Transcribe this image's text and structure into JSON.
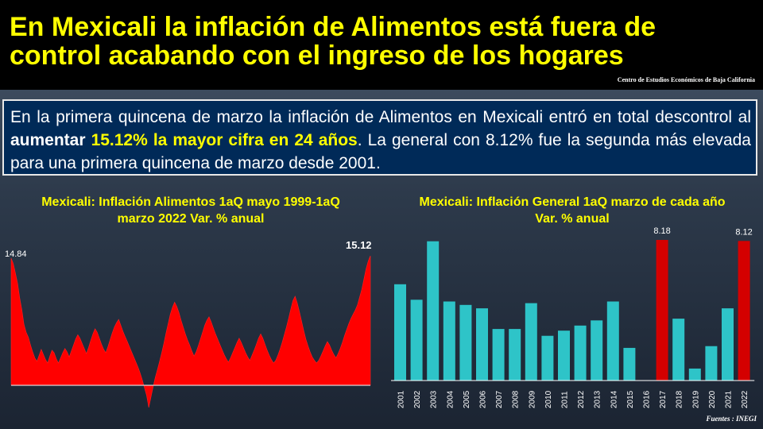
{
  "header": {
    "title": "En Mexicali la inflación de Alimentos está fuera de control acabando con el ingreso de los hogares",
    "source": "Centro de Estudios Económicos de Baja California"
  },
  "summary": {
    "part1": "En la primera quincena de marzo la inflación de Alimentos en Mexicali entró en total descontrol al ",
    "bold1": "aumentar",
    "hl1": "15.12%",
    "hl2": "la mayor cifra en 24 años",
    "part2": ". La general con 8.12% fue la segunda más elevada para una primera quincena de marzo desde 2001."
  },
  "footer": {
    "source": "Fuentes : INEGI"
  },
  "colors": {
    "title": "#ffff00",
    "food_area": "#ff0000",
    "bar_teal": "#2ec4c8",
    "bar_red": "#d40000"
  },
  "chart_data": [
    {
      "type": "area",
      "title": "Mexicali: Inflación Alimentos 1aQ mayo 1999-1aQ marzo 2022 Var. % anual",
      "x_range": [
        "1aQ mayo 1999",
        "1aQ marzo 2022"
      ],
      "values": [
        14.84,
        14.2,
        13.1,
        11.9,
        10.2,
        8.8,
        7.1,
        6.2,
        5.6,
        4.7,
        3.9,
        3.2,
        2.8,
        3.5,
        4.2,
        3.6,
        3.0,
        2.6,
        3.4,
        4.1,
        3.8,
        3.1,
        2.6,
        3.2,
        3.8,
        4.3,
        3.9,
        3.3,
        4.0,
        4.7,
        5.4,
        5.9,
        5.5,
        4.9,
        4.3,
        3.7,
        4.4,
        5.2,
        6.0,
        6.6,
        6.2,
        5.5,
        4.8,
        4.2,
        3.8,
        4.5,
        5.3,
        6.1,
        6.8,
        7.3,
        7.7,
        7.0,
        6.3,
        5.7,
        5.1,
        4.5,
        3.9,
        3.3,
        2.7,
        2.1,
        1.4,
        0.6,
        -0.3,
        -1.2,
        -2.6,
        -1.4,
        -0.2,
        0.9,
        1.8,
        2.8,
        3.8,
        4.9,
        6.1,
        7.2,
        8.3,
        9.1,
        9.7,
        9.2,
        8.5,
        7.6,
        6.8,
        6.0,
        5.3,
        4.7,
        4.0,
        3.4,
        3.9,
        4.6,
        5.4,
        6.2,
        7.0,
        7.6,
        8.0,
        7.4,
        6.7,
        6.0,
        5.4,
        4.8,
        4.2,
        3.6,
        3.1,
        2.7,
        3.2,
        3.8,
        4.4,
        5.0,
        5.5,
        5.0,
        4.4,
        3.8,
        3.3,
        2.9,
        3.5,
        4.1,
        4.8,
        5.5,
        6.0,
        5.5,
        4.8,
        4.1,
        3.5,
        3.0,
        2.6,
        2.9,
        3.5,
        4.2,
        5.0,
        5.9,
        6.8,
        7.8,
        8.9,
        9.9,
        10.4,
        9.6,
        8.6,
        7.5,
        6.4,
        5.4,
        4.6,
        3.9,
        3.3,
        2.9,
        2.6,
        2.9,
        3.4,
        4.0,
        4.6,
        5.1,
        4.7,
        4.1,
        3.6,
        3.2,
        3.7,
        4.3,
        5.0,
        5.8,
        6.5,
        7.2,
        7.8,
        8.3,
        8.8,
        9.4,
        10.3,
        11.2,
        12.4,
        13.6,
        14.5,
        15.12
      ]
    },
    {
      "type": "bar",
      "title": "Mexicali: Inflación General 1aQ marzo de cada año Var. % anual",
      "categories": [
        "2001",
        "2002",
        "2003",
        "2004",
        "2005",
        "2006",
        "2007",
        "2008",
        "2009",
        "2010",
        "2011",
        "2012",
        "2013",
        "2014",
        "2015",
        "2016",
        "2017",
        "2018",
        "2019",
        "2020",
        "2021",
        "2022"
      ],
      "values": [
        5.6,
        4.7,
        8.1,
        4.6,
        4.4,
        4.2,
        3.0,
        3.0,
        4.5,
        2.6,
        2.9,
        3.2,
        3.5,
        4.6,
        1.9,
        0.0,
        8.18,
        3.6,
        0.7,
        2.0,
        4.2,
        8.12
      ],
      "highlight": [
        "2017",
        "2022"
      ],
      "data_labels": {
        "2017": "8.18",
        "2022": "8.12"
      },
      "ylim": [
        0,
        9
      ]
    }
  ]
}
